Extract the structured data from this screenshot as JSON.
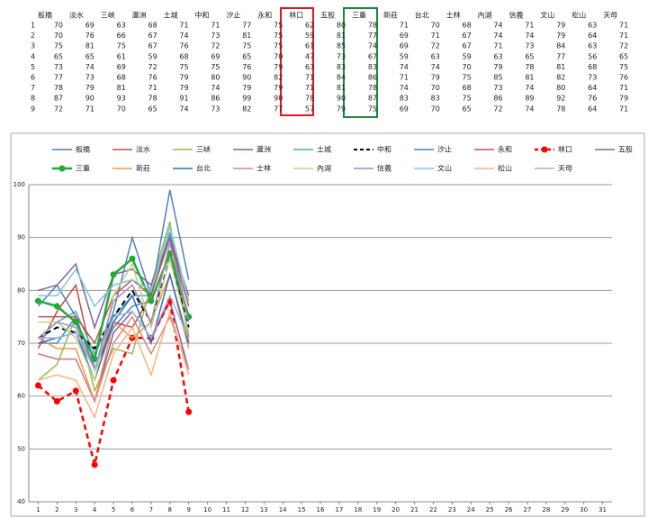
{
  "table": {
    "header": [
      "板橋",
      "淡水",
      "三峽",
      "蘆洲",
      "土城",
      "中和",
      "汐止",
      "永和",
      "林口",
      "五股",
      "三重",
      "新莊",
      "台北",
      "士林",
      "內湖",
      "信義",
      "文山",
      "松山",
      "天母"
    ],
    "rows": [
      [
        1,
        70,
        69,
        63,
        68,
        71,
        71,
        77,
        75,
        62,
        80,
        78,
        71,
        70,
        68,
        74,
        71,
        79,
        63,
        71
      ],
      [
        2,
        70,
        76,
        66,
        67,
        74,
        73,
        81,
        75,
        59,
        81,
        77,
        69,
        71,
        67,
        74,
        74,
        79,
        64,
        71
      ],
      [
        3,
        75,
        81,
        75,
        67,
        76,
        72,
        75,
        75,
        61,
        85,
        74,
        69,
        72,
        67,
        71,
        73,
        84,
        63,
        72
      ],
      [
        4,
        65,
        65,
        61,
        59,
        68,
        69,
        65,
        70,
        47,
        73,
        67,
        59,
        63,
        59,
        63,
        65,
        77,
        56,
        65
      ],
      [
        5,
        73,
        74,
        69,
        72,
        75,
        75,
        76,
        79,
        63,
        83,
        83,
        74,
        74,
        70,
        79,
        78,
        81,
        68,
        75
      ],
      [
        6,
        77,
        73,
        68,
        76,
        79,
        80,
        90,
        82,
        71,
        84,
        86,
        71,
        79,
        75,
        85,
        81,
        82,
        73,
        76
      ],
      [
        7,
        78,
        79,
        81,
        71,
        79,
        74,
        79,
        79,
        71,
        81,
        78,
        74,
        70,
        68,
        73,
        74,
        80,
        64,
        71
      ],
      [
        8,
        87,
        90,
        93,
        78,
        91,
        86,
        99,
        90,
        78,
        90,
        87,
        83,
        83,
        75,
        86,
        89,
        92,
        76,
        79
      ],
      [
        9,
        72,
        71,
        70,
        65,
        74,
        73,
        82,
        77,
        57,
        79,
        75,
        69,
        70,
        65,
        72,
        74,
        78,
        64,
        71
      ]
    ]
  },
  "chart_data": {
    "type": "line",
    "x": [
      1,
      2,
      3,
      4,
      5,
      6,
      7,
      8,
      9
    ],
    "xlim": [
      0.5,
      31.5
    ],
    "xticks": [
      1,
      2,
      3,
      4,
      5,
      6,
      7,
      8,
      9,
      10,
      11,
      12,
      13,
      14,
      15,
      16,
      17,
      18,
      19,
      20,
      21,
      22,
      23,
      24,
      25,
      26,
      27,
      28,
      29,
      30,
      31
    ],
    "ylim": [
      40,
      100
    ],
    "yticks": [
      40,
      50,
      60,
      70,
      80,
      90,
      100
    ],
    "grid": true,
    "legend": "top",
    "series": [
      {
        "name": "板橋",
        "color": "#4a7ebb",
        "values": [
          70,
          70,
          75,
          65,
          73,
          77,
          78,
          87,
          72
        ]
      },
      {
        "name": "淡水",
        "color": "#be4b48",
        "values": [
          69,
          76,
          81,
          65,
          74,
          73,
          79,
          90,
          71
        ]
      },
      {
        "name": "三峽",
        "color": "#98b954",
        "values": [
          63,
          66,
          75,
          61,
          69,
          68,
          81,
          93,
          70
        ]
      },
      {
        "name": "蘆洲",
        "color": "#7d60a0",
        "values": [
          68,
          67,
          67,
          59,
          72,
          76,
          71,
          78,
          65
        ]
      },
      {
        "name": "土城",
        "color": "#46aac5",
        "values": [
          71,
          74,
          76,
          68,
          75,
          79,
          79,
          91,
          74
        ]
      },
      {
        "name": "中和",
        "color": "#000000",
        "dashed": true,
        "width": 2,
        "values": [
          71,
          73,
          72,
          69,
          75,
          80,
          74,
          86,
          73
        ]
      },
      {
        "name": "汐止",
        "color": "#4f81bd",
        "values": [
          77,
          81,
          75,
          65,
          76,
          90,
          79,
          99,
          82
        ]
      },
      {
        "name": "永和",
        "color": "#c0504d",
        "values": [
          75,
          75,
          75,
          70,
          79,
          82,
          79,
          90,
          77
        ]
      },
      {
        "name": "林口",
        "color": "#ff0000",
        "dashed": true,
        "markers": true,
        "width": 2.5,
        "values": [
          62,
          59,
          61,
          47,
          63,
          71,
          71,
          78,
          57
        ]
      },
      {
        "name": "五股",
        "color": "#8064a2",
        "values": [
          80,
          81,
          85,
          73,
          83,
          84,
          81,
          90,
          79
        ]
      },
      {
        "name": "三重",
        "color": "#1faa3a",
        "markers": true,
        "width": 2.5,
        "values": [
          78,
          77,
          74,
          67,
          83,
          86,
          78,
          87,
          75
        ]
      },
      {
        "name": "新莊",
        "color": "#f79646",
        "values": [
          71,
          69,
          69,
          59,
          74,
          71,
          74,
          83,
          69
        ]
      },
      {
        "name": "台北",
        "color": "#2c6fbf",
        "values": [
          70,
          71,
          72,
          63,
          74,
          79,
          70,
          83,
          70
        ]
      },
      {
        "name": "士林",
        "color": "#d9868a",
        "values": [
          68,
          67,
          67,
          59,
          70,
          75,
          68,
          75,
          65
        ]
      },
      {
        "name": "內湖",
        "color": "#c4d17e",
        "values": [
          74,
          74,
          71,
          63,
          79,
          85,
          73,
          86,
          72
        ]
      },
      {
        "name": "信義",
        "color": "#a08bbf",
        "values": [
          71,
          74,
          73,
          65,
          78,
          81,
          74,
          89,
          74
        ]
      },
      {
        "name": "文山",
        "color": "#7fc6dc",
        "values": [
          79,
          79,
          84,
          77,
          81,
          82,
          80,
          92,
          78
        ]
      },
      {
        "name": "松山",
        "color": "#f9b47c",
        "values": [
          63,
          64,
          63,
          56,
          68,
          73,
          64,
          76,
          64
        ]
      },
      {
        "name": "天母",
        "color": "#9cb6d8",
        "values": [
          71,
          71,
          72,
          65,
          75,
          76,
          71,
          79,
          71
        ]
      }
    ]
  }
}
